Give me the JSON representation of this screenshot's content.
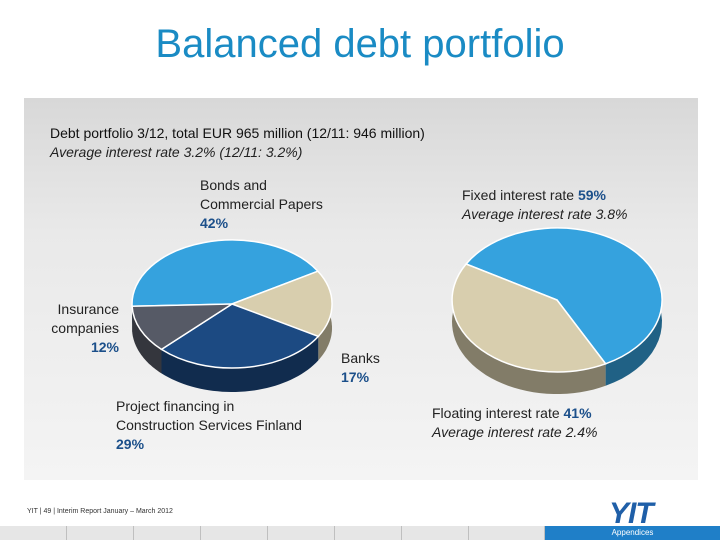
{
  "title": "Balanced debt portfolio",
  "subtitle": "Debt portfolio 3/12, total EUR 965 million (12/11: 946 million)",
  "subtitle2": "Average interest rate 3.2% (12/11: 3.2%)",
  "chart_data": [
    {
      "type": "pie",
      "slices": [
        {
          "name": "Bonds and Commercial Papers",
          "value": 42,
          "color": "#35a2de"
        },
        {
          "name": "Banks",
          "value": 17,
          "color": "#d8ceae"
        },
        {
          "name": "Project financing in Construction Services Finland",
          "value": 29,
          "color": "#1c4a82"
        },
        {
          "name": "Insurance companies",
          "value": 12,
          "color": "#565a66"
        }
      ]
    },
    {
      "type": "pie",
      "slices": [
        {
          "name": "Fixed interest rate",
          "value": 59,
          "note": "Average interest rate 3.8%",
          "color": "#35a2de"
        },
        {
          "name": "Floating interest rate",
          "value": 41,
          "note": "Average interest rate 2.4%",
          "color": "#d8ceae"
        }
      ]
    }
  ],
  "labels": {
    "bonds_1": "Bonds and",
    "bonds_2": "Commercial Papers",
    "bonds_pct": "42%",
    "ins_1": "Insurance",
    "ins_2": "companies",
    "ins_pct": "12%",
    "banks_1": "Banks",
    "banks_pct": "17%",
    "proj_1": "Project financing in",
    "proj_2": "Construction Services Finland",
    "proj_pct": "29%",
    "fixed_1": "Fixed interest rate ",
    "fixed_pct": "59%",
    "fixed_2": "Average interest rate 3.8%",
    "float_1": "Floating interest rate ",
    "float_pct": "41%",
    "float_2": "Average interest rate 2.4%"
  },
  "footer": "YIT  |  49  |  Interim Report January – March 2012",
  "logo": "YIT",
  "appendices": "Appendices"
}
